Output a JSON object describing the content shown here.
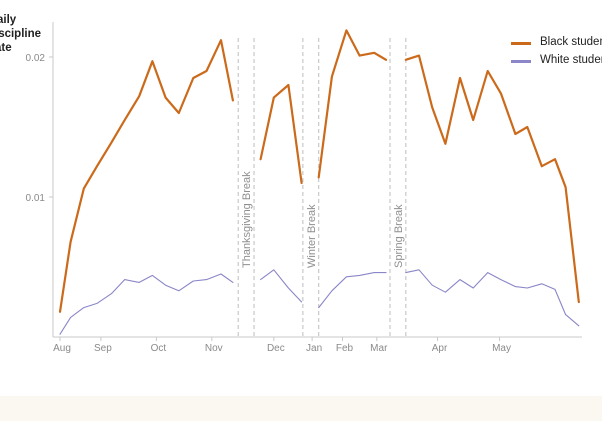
{
  "chart_data": {
    "type": "line",
    "ylabel_lines": [
      "aily",
      "iscipline",
      "ate"
    ],
    "yticks": [
      {
        "value": 0.01,
        "label": "0.01"
      },
      {
        "value": 0.02,
        "label": "0.02"
      }
    ],
    "ylim": [
      0.0,
      0.0225
    ],
    "x_range_weeks": [
      0,
      38.5
    ],
    "xticks": [
      {
        "week": 0,
        "label": "Aug"
      },
      {
        "week": 3.1,
        "label": "Sep"
      },
      {
        "week": 7.3,
        "label": "Oct"
      },
      {
        "week": 11.5,
        "label": "Nov"
      },
      {
        "week": 16.2,
        "label": "Dec"
      },
      {
        "week": 19.1,
        "label": "Jan"
      },
      {
        "week": 21.4,
        "label": "Feb"
      },
      {
        "week": 24.0,
        "label": "Mar"
      },
      {
        "week": 28.6,
        "label": "Apr"
      },
      {
        "week": 33.3,
        "label": "May"
      }
    ],
    "breaks": [
      {
        "label": "Thanksgiving Break",
        "start": 13.5,
        "end": 14.7
      },
      {
        "label": "Winter Break",
        "start": 18.4,
        "end": 19.6
      },
      {
        "label": "Spring Break",
        "start": 25.0,
        "end": 26.2
      }
    ],
    "grid": false,
    "legend_position": "top-right",
    "series": [
      {
        "name": "Black studen",
        "color": "#cc6a1b",
        "segments": [
          [
            [
              0,
              0.0018
            ],
            [
              0.8,
              0.0068
            ],
            [
              1.8,
              0.0106
            ],
            [
              2.8,
              0.0122
            ],
            [
              3.9,
              0.0139
            ],
            [
              4.9,
              0.0155
            ],
            [
              6.0,
              0.0172
            ],
            [
              7.0,
              0.0197
            ],
            [
              8.0,
              0.0171
            ],
            [
              9.0,
              0.016
            ],
            [
              10.1,
              0.0185
            ],
            [
              11.1,
              0.019
            ],
            [
              12.2,
              0.0212
            ],
            [
              13.1,
              0.0169
            ]
          ],
          [
            [
              15.2,
              0.0127
            ],
            [
              16.2,
              0.0171
            ],
            [
              17.3,
              0.018
            ],
            [
              18.3,
              0.011
            ]
          ],
          [
            [
              19.6,
              0.0114
            ],
            [
              20.6,
              0.0186
            ],
            [
              21.7,
              0.0219
            ],
            [
              22.7,
              0.0201
            ],
            [
              23.8,
              0.0203
            ],
            [
              24.7,
              0.0198
            ]
          ],
          [
            [
              26.2,
              0.0198
            ],
            [
              27.2,
              0.0201
            ],
            [
              28.2,
              0.0164
            ],
            [
              29.2,
              0.0138
            ],
            [
              30.3,
              0.0185
            ],
            [
              31.3,
              0.0155
            ],
            [
              32.4,
              0.019
            ],
            [
              33.4,
              0.0174
            ],
            [
              34.5,
              0.0145
            ],
            [
              35.4,
              0.015
            ],
            [
              36.5,
              0.0122
            ],
            [
              37.5,
              0.0127
            ],
            [
              38.3,
              0.0107
            ],
            [
              39.3,
              0.0025
            ]
          ]
        ]
      },
      {
        "name": "White studen",
        "color": "#8a86c8",
        "segments": [
          [
            [
              0,
              0.0002
            ],
            [
              0.8,
              0.0014
            ],
            [
              1.8,
              0.0021
            ],
            [
              2.8,
              0.0024
            ],
            [
              3.9,
              0.0031
            ],
            [
              4.9,
              0.0041
            ],
            [
              6.0,
              0.0039
            ],
            [
              7.0,
              0.0044
            ],
            [
              8.0,
              0.0037
            ],
            [
              9.0,
              0.0033
            ],
            [
              10.1,
              0.004
            ],
            [
              11.1,
              0.0041
            ],
            [
              12.2,
              0.0045
            ],
            [
              13.1,
              0.0039
            ]
          ],
          [
            [
              15.2,
              0.0041
            ],
            [
              16.2,
              0.0048
            ],
            [
              17.3,
              0.0035
            ],
            [
              18.3,
              0.0025
            ]
          ],
          [
            [
              19.6,
              0.0021
            ],
            [
              20.6,
              0.0033
            ],
            [
              21.7,
              0.0043
            ],
            [
              22.7,
              0.0044
            ],
            [
              23.8,
              0.0046
            ],
            [
              24.7,
              0.0046
            ]
          ],
          [
            [
              26.2,
              0.0046
            ],
            [
              27.2,
              0.0048
            ],
            [
              28.2,
              0.0037
            ],
            [
              29.2,
              0.0032
            ],
            [
              30.3,
              0.0041
            ],
            [
              31.3,
              0.0035
            ],
            [
              32.4,
              0.0046
            ],
            [
              33.4,
              0.0041
            ],
            [
              34.5,
              0.0036
            ],
            [
              35.4,
              0.0035
            ],
            [
              36.5,
              0.0038
            ],
            [
              37.5,
              0.0034
            ],
            [
              38.3,
              0.0016
            ],
            [
              39.3,
              0.0008
            ]
          ]
        ]
      }
    ]
  }
}
